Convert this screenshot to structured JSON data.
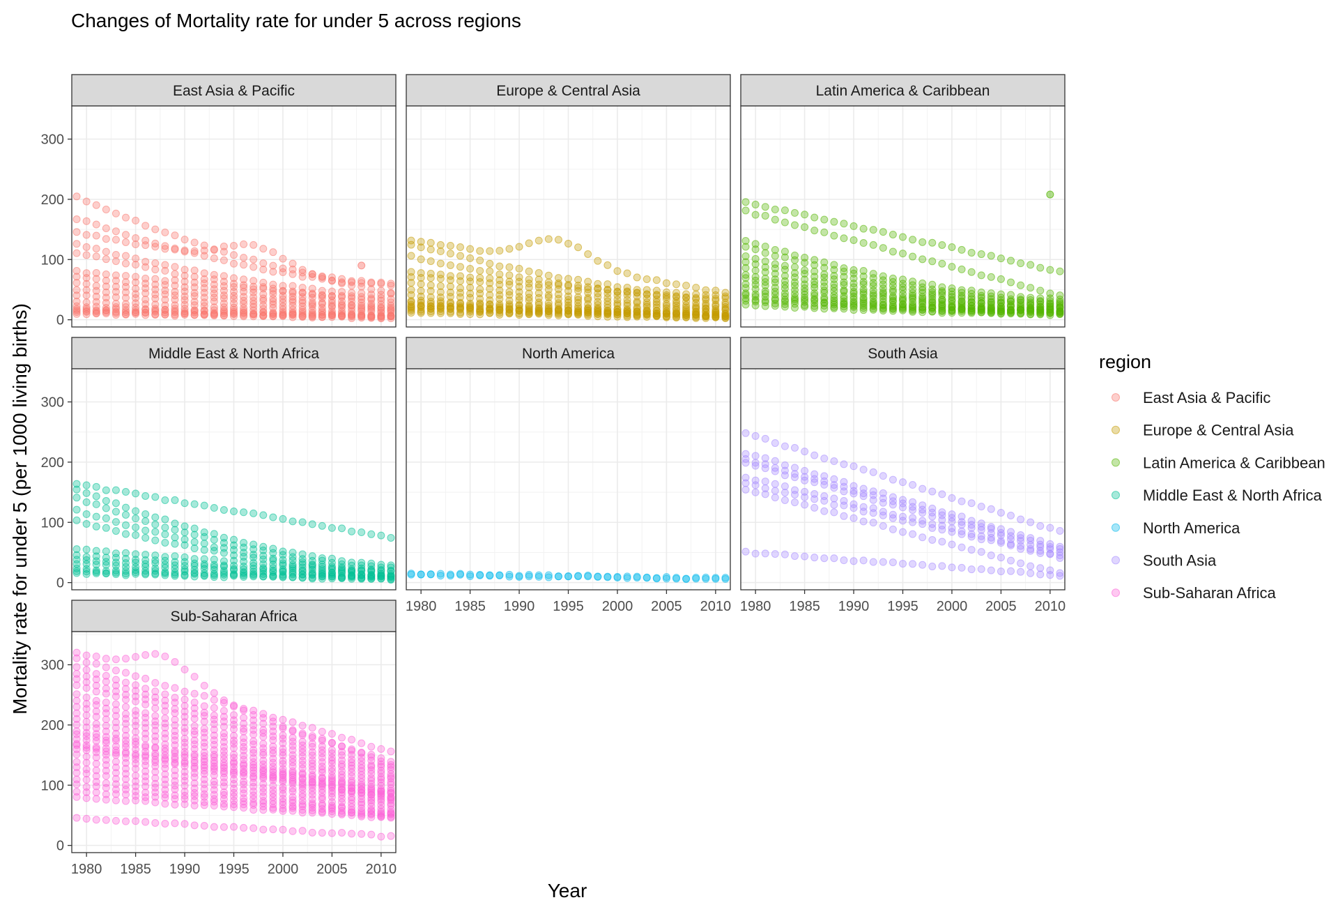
{
  "chart_data": {
    "type": "scatter",
    "title": "Changes of Mortality rate for under 5 across regions",
    "xlabel": "Year",
    "ylabel": "Mortality rate for under 5 (per 1000 living births)",
    "xlim": [
      1978.5,
      2011.5
    ],
    "ylim": [
      -12,
      355
    ],
    "x_ticks": [
      1980,
      1985,
      1990,
      1995,
      2000,
      2005,
      2010
    ],
    "y_ticks": [
      0,
      100,
      200,
      300
    ],
    "grid": true,
    "point_opacity": 0.35,
    "legend": {
      "title": "region",
      "position": "right",
      "entries": [
        {
          "label": "East Asia & Pacific",
          "color": "#F8766D"
        },
        {
          "label": "Europe & Central Asia",
          "color": "#C49A00"
        },
        {
          "label": "Latin America & Caribbean",
          "color": "#53B400"
        },
        {
          "label": "Middle East & North Africa",
          "color": "#00C094"
        },
        {
          "label": "North America",
          "color": "#00B6EB"
        },
        {
          "label": "South Asia",
          "color": "#A58AFF"
        },
        {
          "label": "Sub-Saharan Africa",
          "color": "#FB61D7"
        }
      ]
    },
    "panels": [
      {
        "name": "East Asia & Pacific",
        "color": "#F8766D",
        "series": [
          {
            "start": 205,
            "end": 60,
            "shape": "decay"
          },
          {
            "start": 168,
            "end": 58,
            "shape": "decay"
          },
          {
            "start": 145,
            "end": 45,
            "shape": "bump",
            "bump_center": 1997,
            "bump_size": 35
          },
          {
            "start": 125,
            "end": 42,
            "shape": "decay"
          },
          {
            "start": 112,
            "end": 35,
            "shape": "decay"
          },
          {
            "start": 80,
            "end": 30,
            "shape": "linear"
          },
          {
            "start": 70,
            "end": 25,
            "shape": "linear"
          },
          {
            "start": 60,
            "end": 20,
            "shape": "linear"
          },
          {
            "start": 50,
            "end": 18,
            "shape": "linear"
          },
          {
            "start": 40,
            "end": 15,
            "shape": "linear"
          },
          {
            "start": 30,
            "end": 12,
            "shape": "linear"
          },
          {
            "start": 22,
            "end": 8,
            "shape": "linear"
          },
          {
            "start": 18,
            "end": 6,
            "shape": "linear"
          },
          {
            "start": 15,
            "end": 5,
            "shape": "linear"
          },
          {
            "start": 12,
            "end": 4,
            "shape": "linear"
          },
          {
            "start": 10,
            "end": 3,
            "shape": "linear"
          }
        ],
        "outliers": [
          {
            "x": 2008,
            "y": 90
          }
        ]
      },
      {
        "name": "Europe & Central Asia",
        "color": "#C49A00",
        "series": [
          {
            "start": 133,
            "end": 45,
            "shape": "bump",
            "bump_center": 1994,
            "bump_size": 40
          },
          {
            "start": 125,
            "end": 40,
            "shape": "decay"
          },
          {
            "start": 105,
            "end": 35,
            "shape": "decay"
          },
          {
            "start": 80,
            "end": 30,
            "shape": "linear"
          },
          {
            "start": 72,
            "end": 25,
            "shape": "linear"
          },
          {
            "start": 60,
            "end": 20,
            "shape": "linear"
          },
          {
            "start": 50,
            "end": 18,
            "shape": "linear"
          },
          {
            "start": 40,
            "end": 15,
            "shape": "linear"
          },
          {
            "start": 32,
            "end": 12,
            "shape": "linear"
          },
          {
            "start": 28,
            "end": 10,
            "shape": "linear"
          },
          {
            "start": 25,
            "end": 8,
            "shape": "linear"
          },
          {
            "start": 22,
            "end": 7,
            "shape": "linear"
          },
          {
            "start": 20,
            "end": 6,
            "shape": "linear"
          },
          {
            "start": 18,
            "end": 5,
            "shape": "linear"
          },
          {
            "start": 15,
            "end": 4,
            "shape": "linear"
          },
          {
            "start": 12,
            "end": 3,
            "shape": "linear"
          }
        ],
        "outliers": []
      },
      {
        "name": "Latin America & Caribbean",
        "color": "#53B400",
        "series": [
          {
            "start": 195,
            "end": 80,
            "shape": "linear"
          },
          {
            "start": 180,
            "end": 40,
            "shape": "linear"
          },
          {
            "start": 130,
            "end": 35,
            "shape": "decay"
          },
          {
            "start": 120,
            "end": 30,
            "shape": "decay"
          },
          {
            "start": 105,
            "end": 28,
            "shape": "decay"
          },
          {
            "start": 95,
            "end": 25,
            "shape": "decay"
          },
          {
            "start": 85,
            "end": 22,
            "shape": "decay"
          },
          {
            "start": 75,
            "end": 20,
            "shape": "decay"
          },
          {
            "start": 68,
            "end": 18,
            "shape": "decay"
          },
          {
            "start": 60,
            "end": 16,
            "shape": "decay"
          },
          {
            "start": 52,
            "end": 15,
            "shape": "decay"
          },
          {
            "start": 45,
            "end": 14,
            "shape": "decay"
          },
          {
            "start": 40,
            "end": 13,
            "shape": "decay"
          },
          {
            "start": 35,
            "end": 12,
            "shape": "decay"
          },
          {
            "start": 30,
            "end": 10,
            "shape": "decay"
          },
          {
            "start": 25,
            "end": 9,
            "shape": "decay"
          }
        ],
        "outliers": [
          {
            "x": 2010,
            "y": 208
          }
        ]
      },
      {
        "name": "Middle East & North Africa",
        "color": "#00C094",
        "series": [
          {
            "start": 163,
            "end": 75,
            "shape": "linear"
          },
          {
            "start": 155,
            "end": 30,
            "shape": "decay"
          },
          {
            "start": 140,
            "end": 25,
            "shape": "decay"
          },
          {
            "start": 120,
            "end": 20,
            "shape": "decay"
          },
          {
            "start": 102,
            "end": 18,
            "shape": "decay"
          },
          {
            "start": 55,
            "end": 15,
            "shape": "linear"
          },
          {
            "start": 45,
            "end": 12,
            "shape": "linear"
          },
          {
            "start": 38,
            "end": 10,
            "shape": "linear"
          },
          {
            "start": 30,
            "end": 9,
            "shape": "linear"
          },
          {
            "start": 22,
            "end": 8,
            "shape": "linear"
          },
          {
            "start": 18,
            "end": 6,
            "shape": "linear"
          },
          {
            "start": 15,
            "end": 5,
            "shape": "linear"
          }
        ],
        "outliers": []
      },
      {
        "name": "North America",
        "color": "#00B6EB",
        "series": [
          {
            "start": 15,
            "end": 7,
            "shape": "linear"
          },
          {
            "start": 13,
            "end": 6,
            "shape": "linear"
          }
        ],
        "outliers": []
      },
      {
        "name": "South Asia",
        "color": "#A58AFF",
        "series": [
          {
            "start": 248,
            "end": 85,
            "shape": "linear"
          },
          {
            "start": 215,
            "end": 60,
            "shape": "linear"
          },
          {
            "start": 205,
            "end": 55,
            "shape": "linear"
          },
          {
            "start": 198,
            "end": 50,
            "shape": "linear"
          },
          {
            "start": 175,
            "end": 45,
            "shape": "linear"
          },
          {
            "start": 165,
            "end": 42,
            "shape": "linear"
          },
          {
            "start": 155,
            "end": 15,
            "shape": "linear"
          },
          {
            "start": 50,
            "end": 12,
            "shape": "linear"
          }
        ],
        "outliers": []
      },
      {
        "name": "Sub-Saharan Africa",
        "color": "#FB61D7",
        "series": [
          {
            "start": 320,
            "end": 135,
            "shape": "bump",
            "bump_center": 1988,
            "bump_size": 45
          },
          {
            "start": 310,
            "end": 155,
            "shape": "linear"
          },
          {
            "start": 295,
            "end": 140,
            "shape": "linear"
          },
          {
            "start": 285,
            "end": 130,
            "shape": "linear"
          },
          {
            "start": 275,
            "end": 125,
            "shape": "linear"
          },
          {
            "start": 265,
            "end": 120,
            "shape": "linear"
          },
          {
            "start": 250,
            "end": 115,
            "shape": "linear"
          },
          {
            "start": 240,
            "end": 110,
            "shape": "linear"
          },
          {
            "start": 230,
            "end": 105,
            "shape": "linear"
          },
          {
            "start": 220,
            "end": 100,
            "shape": "linear"
          },
          {
            "start": 210,
            "end": 95,
            "shape": "linear"
          },
          {
            "start": 200,
            "end": 90,
            "shape": "linear"
          },
          {
            "start": 190,
            "end": 88,
            "shape": "linear"
          },
          {
            "start": 185,
            "end": 85,
            "shape": "linear"
          },
          {
            "start": 178,
            "end": 82,
            "shape": "linear"
          },
          {
            "start": 170,
            "end": 80,
            "shape": "linear"
          },
          {
            "start": 165,
            "end": 78,
            "shape": "linear"
          },
          {
            "start": 160,
            "end": 75,
            "shape": "linear"
          },
          {
            "start": 150,
            "end": 70,
            "shape": "linear"
          },
          {
            "start": 140,
            "end": 65,
            "shape": "linear"
          },
          {
            "start": 130,
            "end": 60,
            "shape": "linear"
          },
          {
            "start": 120,
            "end": 55,
            "shape": "linear"
          },
          {
            "start": 110,
            "end": 52,
            "shape": "linear"
          },
          {
            "start": 100,
            "end": 50,
            "shape": "linear"
          },
          {
            "start": 90,
            "end": 48,
            "shape": "linear"
          },
          {
            "start": 80,
            "end": 45,
            "shape": "linear"
          },
          {
            "start": 45,
            "end": 15,
            "shape": "linear"
          }
        ],
        "outliers": []
      }
    ]
  }
}
